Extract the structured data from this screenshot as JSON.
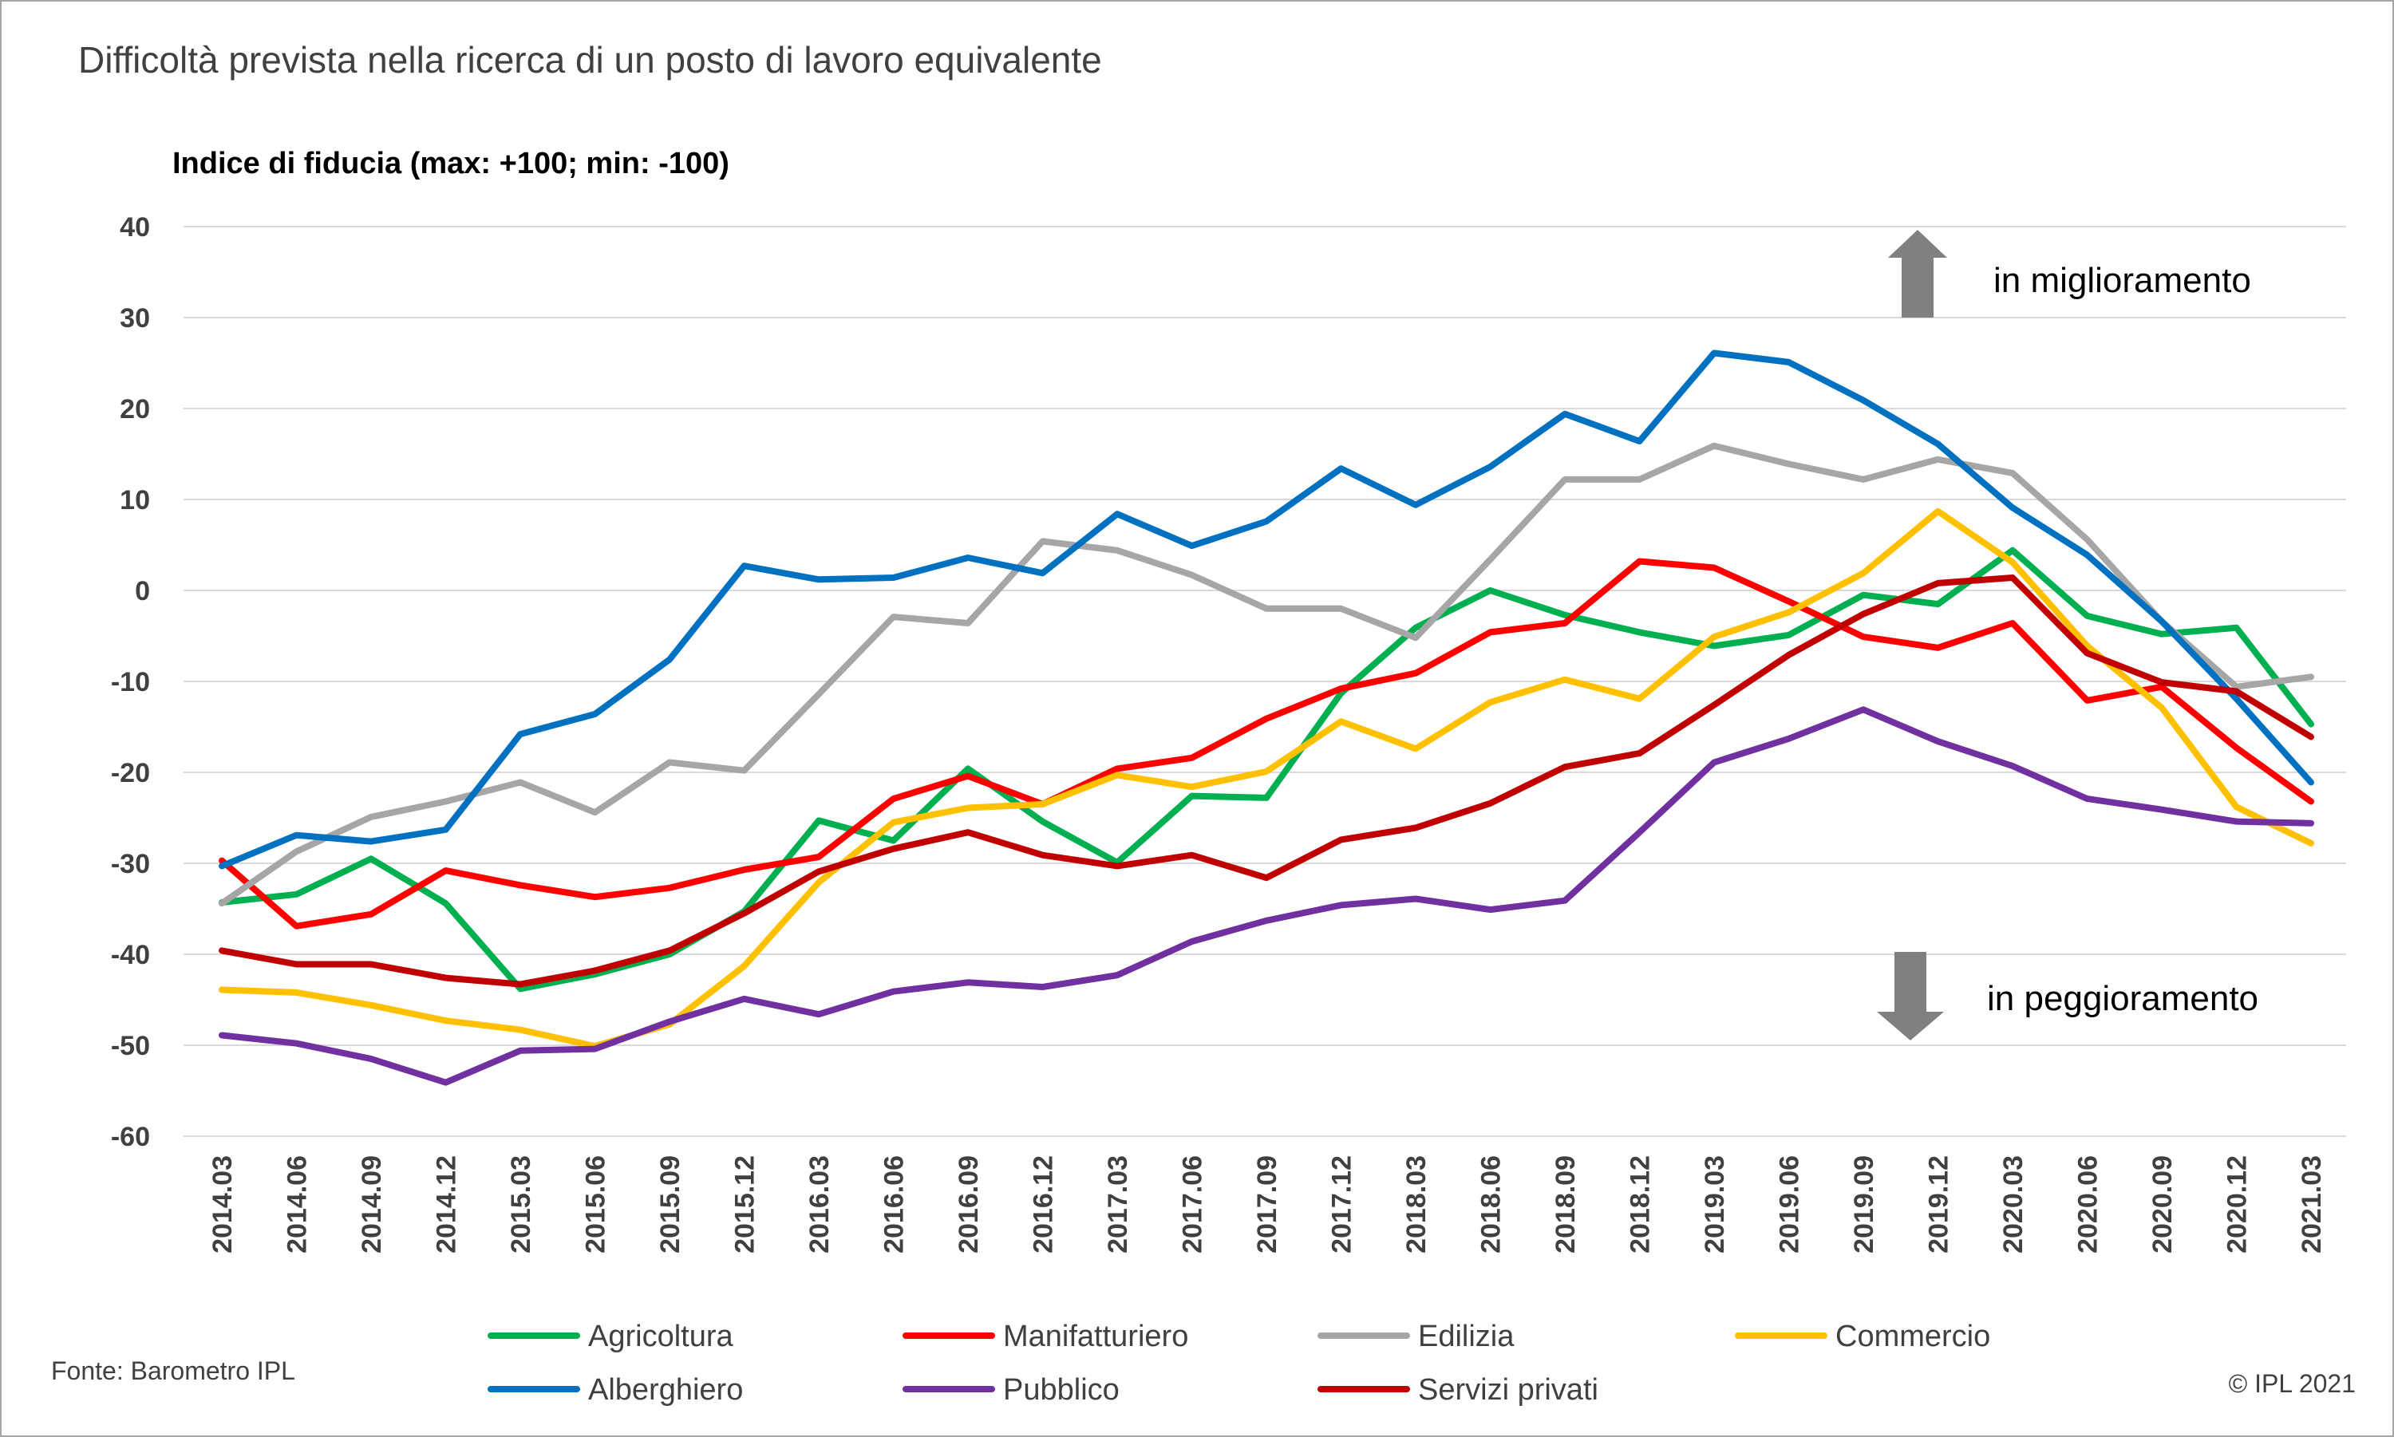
{
  "title": "Difficoltà  prevista  nella ricerca  di un posto di lavoro equivalente",
  "source": "Fonte: Barometro IPL",
  "copyright": "© IPL  2021",
  "chart_data": {
    "type": "line",
    "ylabel": "Indice di  fiducia (max: +100;  min: -100)",
    "ylim": [
      -60,
      40
    ],
    "yticks": [
      40,
      30,
      20,
      10,
      0,
      -10,
      -20,
      -30,
      -40,
      -50,
      -60
    ],
    "ytick_labels": [
      "40",
      "30",
      "20",
      "10",
      "0",
      "-10",
      "-20",
      "-30",
      "-40",
      "-50",
      "-60"
    ],
    "grid": true,
    "legend_position": "bottom",
    "annotations": {
      "up": "in miglioramento",
      "down": "in peggioramento"
    },
    "categories": [
      "2014.03",
      "2014.06",
      "2014.09",
      "2014.12",
      "2015.03",
      "2015.06",
      "2015.09",
      "2015.12",
      "2016.03",
      "2016.06",
      "2016.09",
      "2016.12",
      "2017.03",
      "2017.06",
      "2017.09",
      "2017.12",
      "2018.03",
      "2018.06",
      "2018.09",
      "2018.12",
      "2019.03",
      "2019.06",
      "2019.09",
      "2019.12",
      "2020.03",
      "2020.06",
      "2020.09",
      "2020.12",
      "2021.03"
    ],
    "series": [
      {
        "name": "Agricoltura",
        "color": "#00b050",
        "values": [
          -34.3,
          -33.4,
          -29.5,
          -34.4,
          -43.8,
          -42.2,
          -40.0,
          -35.3,
          -25.3,
          -27.5,
          -19.6,
          -25.4,
          -29.9,
          -22.6,
          -22.8,
          -11.3,
          -4.1,
          0.0,
          -2.7,
          -4.6,
          -6.1,
          -4.9,
          -0.5,
          -1.5,
          4.4,
          -2.8,
          -4.8,
          -4.1,
          -14.7
        ]
      },
      {
        "name": "Manifatturiero",
        "color": "#ff0000",
        "values": [
          -29.7,
          -36.9,
          -35.6,
          -30.8,
          -32.4,
          -33.7,
          -32.7,
          -30.7,
          -29.3,
          -22.9,
          -20.4,
          -23.5,
          -19.6,
          -18.4,
          -14.1,
          -10.8,
          -9.1,
          -4.6,
          -3.6,
          3.2,
          2.5,
          -1.2,
          -5.1,
          -6.3,
          -3.6,
          -12.1,
          -10.6,
          -17.3,
          -23.2
        ]
      },
      {
        "name": "Edilizia",
        "color": "#a6a6a6",
        "values": [
          -34.4,
          -28.7,
          -24.9,
          -23.2,
          -21.1,
          -24.4,
          -18.9,
          -19.8,
          -11.4,
          -2.9,
          -3.6,
          5.4,
          4.4,
          1.7,
          -2.0,
          -2.0,
          -5.2,
          3.4,
          12.2,
          12.2,
          15.9,
          13.9,
          12.2,
          14.4,
          12.9,
          5.6,
          -3.4,
          -10.6,
          -9.5
        ]
      },
      {
        "name": "Commercio",
        "color": "#ffc000",
        "values": [
          -43.9,
          -44.2,
          -45.6,
          -47.3,
          -48.3,
          -50.1,
          -47.7,
          -41.3,
          -32.1,
          -25.5,
          -23.9,
          -23.5,
          -20.3,
          -21.6,
          -19.9,
          -14.4,
          -17.4,
          -12.3,
          -9.8,
          -11.9,
          -5.1,
          -2.4,
          1.9,
          8.7,
          3.1,
          -6.1,
          -12.9,
          -23.8,
          -27.8
        ]
      },
      {
        "name": "Alberghiero",
        "color": "#0070c0",
        "values": [
          -30.3,
          -26.9,
          -27.6,
          -26.3,
          -15.8,
          -13.6,
          -7.6,
          2.7,
          1.2,
          1.4,
          3.6,
          1.9,
          8.4,
          4.9,
          7.6,
          13.4,
          9.4,
          13.6,
          19.4,
          16.4,
          26.1,
          25.1,
          20.9,
          16.1,
          9.1,
          3.9,
          -3.4,
          -11.9,
          -21.1
        ]
      },
      {
        "name": "Pubblico",
        "color": "#7030a0",
        "values": [
          -48.9,
          -49.8,
          -51.5,
          -54.1,
          -50.6,
          -50.4,
          -47.4,
          -44.9,
          -46.6,
          -44.1,
          -43.1,
          -43.6,
          -42.3,
          -38.6,
          -36.3,
          -34.6,
          -33.9,
          -35.1,
          -34.1,
          -26.6,
          -18.9,
          -16.3,
          -13.1,
          -16.6,
          -19.3,
          -22.9,
          -24.1,
          -25.4,
          -25.6
        ]
      },
      {
        "name": "Servizi privati",
        "color": "#c00000",
        "values": [
          -39.6,
          -41.1,
          -41.1,
          -42.6,
          -43.3,
          -41.8,
          -39.6,
          -35.5,
          -30.9,
          -28.4,
          -26.6,
          -29.1,
          -30.3,
          -29.1,
          -31.6,
          -27.4,
          -26.1,
          -23.4,
          -19.4,
          -17.9,
          -12.6,
          -7.1,
          -2.6,
          0.8,
          1.4,
          -6.9,
          -10.1,
          -11.1,
          -16.1
        ]
      }
    ]
  }
}
